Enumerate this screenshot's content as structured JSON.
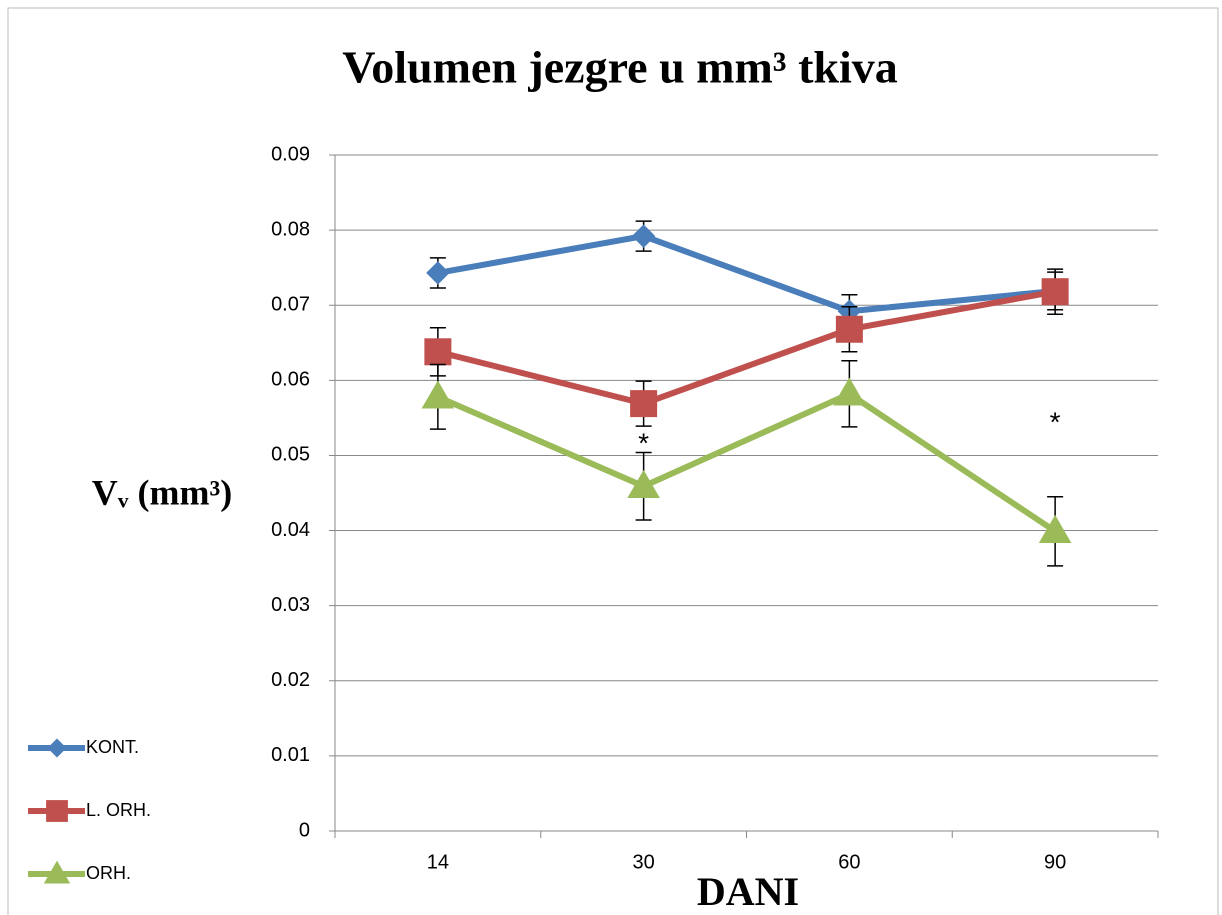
{
  "chart_data": {
    "type": "line",
    "title": "Volumen jezgre u mm³ tkiva",
    "x_label": "DANI",
    "y_label": "Vᵥ (mm³)",
    "categories": [
      "14",
      "30",
      "60",
      "90"
    ],
    "series": [
      {
        "name": "KONT.",
        "color": "#4a7ebb",
        "marker": "diamond",
        "values": [
          0.0743,
          0.0792,
          0.0692,
          0.0719
        ],
        "errors": [
          0.002,
          0.002,
          0.0022,
          0.0025
        ]
      },
      {
        "name": "L. ORH.",
        "color": "#c0504d",
        "marker": "square",
        "values": [
          0.0638,
          0.0569,
          0.0668,
          0.0718
        ],
        "errors": [
          0.0032,
          0.003,
          0.003,
          0.003
        ]
      },
      {
        "name": "ORH.",
        "color": "#9bbb59",
        "marker": "triangle",
        "values": [
          0.0578,
          0.0459,
          0.0582,
          0.0399
        ],
        "errors": [
          0.0043,
          0.0045,
          0.0044,
          0.0046
        ]
      }
    ],
    "annotations": [
      "*",
      "*"
    ],
    "ylim": [
      0,
      0.09
    ],
    "yticks": [
      0,
      0.01,
      0.02,
      0.03,
      0.04,
      0.05,
      0.06,
      0.07,
      0.08,
      0.09
    ],
    "grid": true,
    "legend": "bottom-left"
  }
}
